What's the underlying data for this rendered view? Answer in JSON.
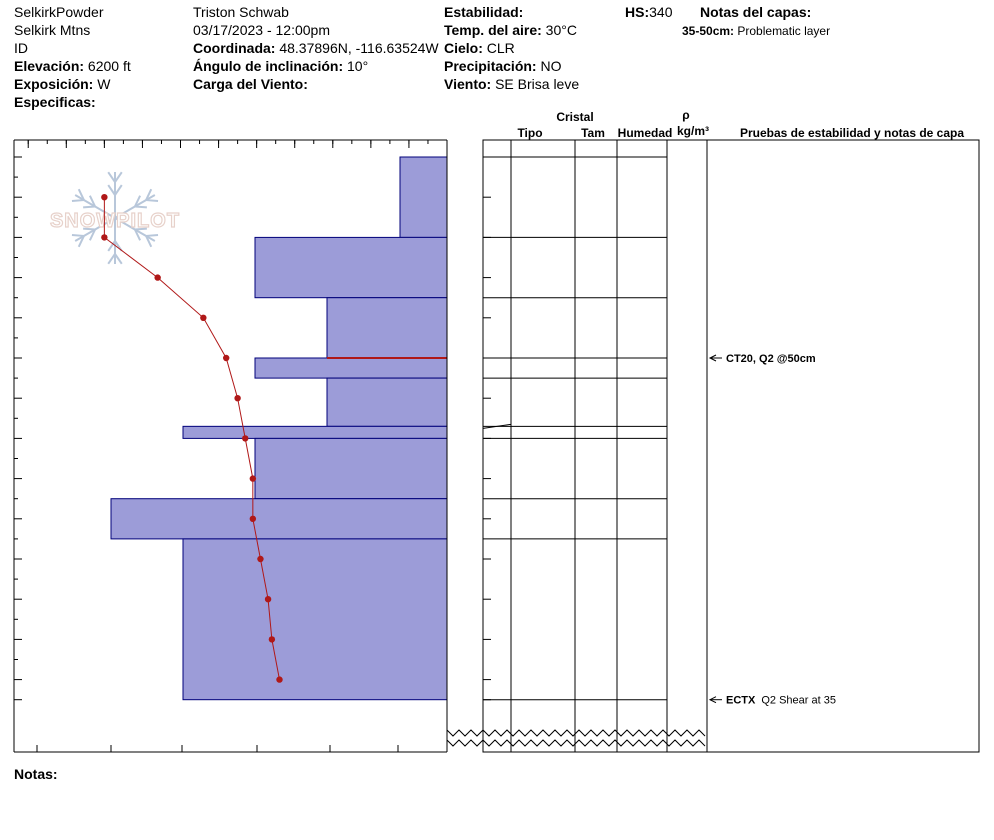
{
  "header": {
    "location_name": "SelkirkPowder",
    "range": "Selkirk Mtns",
    "state": "ID",
    "elevation_label": "Elevación:",
    "elevation_value": "6200 ft",
    "aspect_label": "Exposición:",
    "aspect_value": "W",
    "specifics_label": "Especificas:",
    "observer": "Triston Schwab",
    "datetime": "03/17/2023 - 12:00pm",
    "coord_label": "Coordinada:",
    "coord_value": "48.37896N, -116.63524W",
    "slope_label": "Ángulo de inclinación:",
    "slope_value": "10°",
    "wind_load_label": "Carga del Viento:",
    "stability_label": "Estabilidad:",
    "air_temp_label": "Temp. del aire:",
    "air_temp_value": "30°C",
    "sky_label": "Cielo:",
    "sky_value": "CLR",
    "precip_label": "Precipitación:",
    "precip_value": "NO",
    "wind_label": "Viento:",
    "wind_value": "SE  Brisa leve",
    "hs_label": "HS:",
    "hs_value": "340",
    "layer_notes_label": "Notas del capas:",
    "layer_note_range": "35-50cm:",
    "layer_note_text": "Problematic layer"
  },
  "watermark": "SNOWPILOT",
  "footer": {
    "notes_label": "Notas:"
  },
  "columns": {
    "crystal": "Cristal",
    "type": "Tipo",
    "size": "Tam",
    "moisture": "Humedad",
    "density_symbol": "ρ",
    "density_unit": "kg/m³",
    "tests": "Pruebas de estabilidad y notas de capa"
  },
  "colors": {
    "hardness_fill": "#9c9cd8",
    "hardness_stroke": "#00007a",
    "temperature": "#b01818",
    "weak_layer": "#b01818"
  },
  "tests": [
    {
      "depth": 50,
      "label": "CT20, Q2 @50cm",
      "text": ""
    },
    {
      "depth": 135,
      "label": "ECTX",
      "text": "Q2 Shear at 35"
    }
  ],
  "chart_data": {
    "type": "snow-profile",
    "temperature_axis": {
      "ticks": [
        -11,
        -10,
        -9,
        -8,
        -7,
        -6,
        -5,
        -4,
        -3,
        -2,
        -1,
        0
      ],
      "range": [
        -11,
        0
      ]
    },
    "depth_axis": {
      "ticks": [
        0,
        10,
        20,
        30,
        40,
        50,
        60,
        70,
        80,
        90,
        100,
        110,
        120,
        130,
        135,
        340
      ],
      "range_shown": [
        0,
        135
      ],
      "total": 340
    },
    "hardness_axis": {
      "labels": [
        "I",
        "K",
        "P",
        "1F",
        "4F",
        "F"
      ]
    },
    "hardness_layers": [
      {
        "top": 0,
        "bottom": 20,
        "hardness": "F"
      },
      {
        "top": 20,
        "bottom": 35,
        "hardness": "1F"
      },
      {
        "top": 35,
        "bottom": 50,
        "hardness": "4F"
      },
      {
        "top": 50,
        "bottom": 55,
        "hardness": "1F"
      },
      {
        "top": 55,
        "bottom": 67,
        "hardness": "4F"
      },
      {
        "top": 67,
        "bottom": 70,
        "hardness": "P"
      },
      {
        "top": 70,
        "bottom": 85,
        "hardness": "1F"
      },
      {
        "top": 85,
        "bottom": 95,
        "hardness": "K"
      },
      {
        "top": 95,
        "bottom": 135,
        "hardness": "P"
      }
    ],
    "temperature_profile": [
      {
        "depth": 10,
        "temp": -9.0
      },
      {
        "depth": 20,
        "temp": -9.0
      },
      {
        "depth": 30,
        "temp": -7.6
      },
      {
        "depth": 40,
        "temp": -6.4
      },
      {
        "depth": 50,
        "temp": -5.8
      },
      {
        "depth": 60,
        "temp": -5.5
      },
      {
        "depth": 70,
        "temp": -5.3
      },
      {
        "depth": 80,
        "temp": -5.1
      },
      {
        "depth": 90,
        "temp": -5.1
      },
      {
        "depth": 100,
        "temp": -4.9
      },
      {
        "depth": 110,
        "temp": -4.7
      },
      {
        "depth": 120,
        "temp": -4.6
      },
      {
        "depth": 130,
        "temp": -4.4
      }
    ],
    "weak_layer_depth": 50,
    "layer_boundaries": [
      0,
      20,
      35,
      50,
      55,
      67,
      70,
      85,
      95,
      135
    ]
  }
}
